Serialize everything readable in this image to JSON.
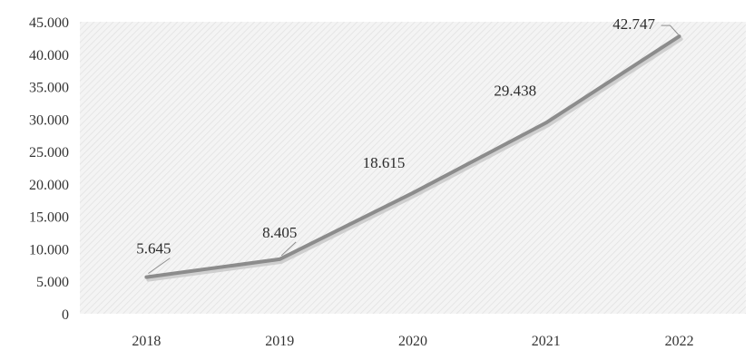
{
  "chart_data": {
    "type": "line",
    "x": [
      "2018",
      "2019",
      "2020",
      "2021",
      "2022"
    ],
    "series": [
      {
        "values": [
          5645,
          8405,
          18615,
          29438,
          42747
        ]
      }
    ],
    "data_labels": [
      "5.645",
      "8.405",
      "18.615",
      "29.438",
      "42.747"
    ],
    "y_ticks": [
      {
        "value": 0,
        "label": "0"
      },
      {
        "value": 5000,
        "label": "5.000"
      },
      {
        "value": 10000,
        "label": "10.000"
      },
      {
        "value": 15000,
        "label": "15.000"
      },
      {
        "value": 20000,
        "label": "20.000"
      },
      {
        "value": 25000,
        "label": "25.000"
      },
      {
        "value": 30000,
        "label": "30.000"
      },
      {
        "value": 35000,
        "label": "35.000"
      },
      {
        "value": 40000,
        "label": "40.000"
      },
      {
        "value": 45000,
        "label": "45.000"
      }
    ],
    "ylim": [
      0,
      45000
    ],
    "title": "",
    "xlabel": "",
    "ylabel": "",
    "grid": false,
    "plot_background": "hatched light grey",
    "colors": {
      "line": "#8c8c8c",
      "text": "#333333"
    }
  }
}
